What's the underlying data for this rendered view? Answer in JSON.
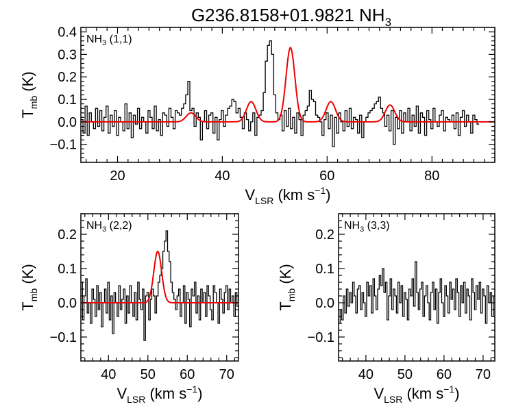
{
  "title": {
    "main": "G236.8158+01.9821 NH",
    "sub": "3"
  },
  "colors": {
    "data": "#000000",
    "fit": "#ee0000",
    "axes": "#000000",
    "background": "#ffffff"
  },
  "chart_data": [
    {
      "type": "line",
      "panel": "NH3 (1,1)",
      "label": {
        "main": "NH",
        "sub": "3",
        "rest": " (1,1)"
      },
      "xlabel": {
        "main": "V",
        "sub": "LSR",
        "rest": " (km s",
        "sup": "−1",
        "end": ")"
      },
      "ylabel": {
        "main": "T",
        "sub": "mb",
        "rest": " (K)"
      },
      "xlim": [
        13,
        92
      ],
      "ylim": [
        -0.18,
        0.42
      ],
      "xticks": [
        20,
        40,
        60,
        80
      ],
      "xtick_labels": [
        "20",
        "40",
        "60",
        "80"
      ],
      "yticks": [
        -0.1,
        0.0,
        0.1,
        0.2,
        0.3,
        0.4
      ],
      "ytick_labels": [
        "−0.1",
        "0.0",
        "0.1",
        "0.2",
        "0.3",
        "0.4"
      ],
      "x_minor_step": 2,
      "y_minor_step": 0.02,
      "fit_components": [
        {
          "center": 34.0,
          "amplitude": 0.04,
          "sigma": 0.9
        },
        {
          "center": 45.5,
          "amplitude": 0.09,
          "sigma": 0.9
        },
        {
          "center": 53.0,
          "amplitude": 0.33,
          "sigma": 0.85
        },
        {
          "center": 60.7,
          "amplitude": 0.09,
          "sigma": 0.9
        },
        {
          "center": 72.0,
          "amplitude": 0.075,
          "sigma": 0.9
        }
      ],
      "spectrum": {
        "x_start": 13.2,
        "x_step": 0.4,
        "y": [
          0.01,
          -0.05,
          0.07,
          -0.06,
          0.04,
          0.0,
          -0.03,
          0.06,
          -0.02,
          0.05,
          -0.04,
          0.02,
          0.07,
          -0.05,
          0.03,
          -0.02,
          0.05,
          -0.06,
          0.02,
          0.0,
          -0.04,
          0.08,
          -0.03,
          0.04,
          -0.07,
          0.03,
          -0.01,
          0.06,
          -0.03,
          0.02,
          0.0,
          -0.05,
          0.05,
          0.02,
          -0.03,
          0.07,
          -0.04,
          0.01,
          -0.06,
          0.04,
          0.03,
          -0.02,
          0.06,
          0.02,
          -0.03,
          0.05,
          0.04,
          0.03,
          0.06,
          0.08,
          0.12,
          0.18,
          0.05,
          0.06,
          -0.02,
          0.04,
          0.02,
          -0.08,
          0.0,
          0.05,
          -0.03,
          0.03,
          0.04,
          -0.05,
          0.02,
          -0.08,
          0.01,
          0.05,
          -0.02,
          0.03,
          0.06,
          0.07,
          0.1,
          0.09,
          0.04,
          0.06,
          0.02,
          -0.03,
          0.04,
          0.01,
          -0.04,
          0.0,
          0.04,
          -0.06,
          0.02,
          0.03,
          0.05,
          0.13,
          0.27,
          0.34,
          0.36,
          0.3,
          0.12,
          0.04,
          0.01,
          0.03,
          -0.04,
          0.05,
          -0.02,
          0.06,
          -0.03,
          0.02,
          -0.05,
          0.04,
          0.01,
          -0.06,
          0.03,
          0.05,
          0.07,
          0.14,
          0.1,
          0.09,
          0.03,
          0.02,
          0.0,
          -0.06,
          0.01,
          0.04,
          -0.03,
          0.03,
          -0.11,
          0.02,
          -0.05,
          0.04,
          0.0,
          -0.04,
          0.05,
          -0.02,
          0.06,
          -0.03,
          0.02,
          0.01,
          -0.05,
          0.03,
          -0.07,
          0.0,
          0.02,
          0.04,
          0.05,
          0.06,
          0.08,
          0.09,
          0.11,
          0.06,
          0.04,
          -0.02,
          0.03,
          -0.04,
          0.05,
          -0.1,
          0.02,
          -0.03,
          0.05,
          -0.05,
          0.04,
          0.0,
          0.06,
          -0.04,
          0.03,
          -0.02,
          0.07,
          -0.05,
          0.04,
          0.02,
          -0.06,
          0.05,
          0.01,
          -0.03,
          0.06,
          0.0,
          -0.02,
          0.03,
          0.05,
          -0.04,
          0.02,
          0.01,
          0.0,
          0.03,
          -0.03,
          0.04,
          -0.06,
          0.02,
          0.05,
          -0.02,
          0.03,
          0.0,
          -0.05,
          0.03,
          0.01,
          -0.01
        ]
      }
    },
    {
      "type": "line",
      "panel": "NH3 (2,2)",
      "label": {
        "main": "NH",
        "sub": "3",
        "rest": " (2,2)"
      },
      "xlabel": {
        "main": "V",
        "sub": "LSR",
        "rest": " (km s",
        "sup": "−1",
        "end": ")"
      },
      "ylabel": {
        "main": "T",
        "sub": "mb",
        "rest": " (K)"
      },
      "xlim": [
        33,
        73
      ],
      "ylim": [
        -0.17,
        0.26
      ],
      "xticks": [
        40,
        50,
        60,
        70
      ],
      "xtick_labels": [
        "40",
        "50",
        "60",
        "70"
      ],
      "yticks": [
        -0.1,
        0.0,
        0.1,
        0.2
      ],
      "ytick_labels": [
        "−0.1",
        "0.0",
        "0.1",
        "0.2"
      ],
      "x_minor_step": 2,
      "y_minor_step": 0.02,
      "fit_components": [
        {
          "center": 52.5,
          "amplitude": 0.15,
          "sigma": 1.0
        }
      ],
      "spectrum": {
        "x_start": 33.2,
        "x_step": 0.4,
        "y": [
          0.06,
          -0.05,
          0.02,
          0.07,
          -0.03,
          0.0,
          -0.06,
          0.04,
          0.01,
          -0.04,
          0.05,
          -0.02,
          0.03,
          -0.07,
          0.0,
          0.04,
          -0.03,
          0.06,
          -0.05,
          0.02,
          -0.09,
          0.03,
          0.0,
          -0.04,
          0.05,
          -0.02,
          0.01,
          0.04,
          -0.06,
          0.02,
          -0.03,
          0.05,
          0.0,
          -0.04,
          0.03,
          -0.05,
          0.06,
          0.01,
          -0.02,
          0.04,
          -0.11,
          0.02,
          0.03,
          -0.05,
          0.01,
          0.04,
          0.02,
          -0.03,
          0.02,
          0.06,
          0.08,
          0.1,
          0.15,
          0.18,
          0.21,
          0.15,
          0.12,
          0.06,
          0.03,
          0.01,
          -0.02,
          0.02,
          0.04,
          -0.04,
          0.0,
          0.05,
          -0.06,
          0.03,
          0.01,
          -0.07,
          0.04,
          0.02,
          0.06,
          -0.03,
          0.02,
          -0.05,
          0.04,
          0.0,
          0.03,
          -0.04,
          0.05,
          0.02,
          -0.02,
          -0.05,
          0.05,
          0.03,
          0.0,
          -0.06,
          0.04,
          0.01,
          -0.03,
          0.03,
          0.05,
          -0.02,
          0.04,
          0.0,
          0.02,
          -0.04,
          0.03,
          -0.01
        ]
      }
    },
    {
      "type": "line",
      "panel": "NH3 (3,3)",
      "label": {
        "main": "NH",
        "sub": "3",
        "rest": " (3,3)"
      },
      "xlabel": {
        "main": "V",
        "sub": "LSR",
        "rest": " (km s",
        "sup": "−1",
        "end": ")"
      },
      "ylabel": {
        "main": "T",
        "sub": "mb",
        "rest": " (K)"
      },
      "xlim": [
        33,
        73
      ],
      "ylim": [
        -0.17,
        0.26
      ],
      "xticks": [
        40,
        50,
        60,
        70
      ],
      "xtick_labels": [
        "40",
        "50",
        "60",
        "70"
      ],
      "yticks": [
        -0.1,
        0.0,
        0.1,
        0.2
      ],
      "ytick_labels": [
        "−0.1",
        "0.0",
        "0.1",
        "0.2"
      ],
      "x_minor_step": 2,
      "y_minor_step": 0.02,
      "fit_components": [],
      "spectrum": {
        "x_start": 33.2,
        "x_step": 0.4,
        "y": [
          -0.06,
          -0.02,
          -0.05,
          0.02,
          -0.03,
          0.04,
          -0.01,
          0.03,
          0.0,
          0.06,
          0.02,
          -0.03,
          0.04,
          0.05,
          -0.02,
          0.03,
          0.0,
          -0.04,
          0.06,
          0.02,
          0.05,
          -0.03,
          0.07,
          0.02,
          -0.02,
          0.04,
          0.08,
          0.05,
          0.1,
          0.03,
          0.06,
          -0.05,
          0.02,
          0.07,
          -0.02,
          0.04,
          0.02,
          -0.03,
          0.06,
          0.0,
          0.05,
          -0.04,
          0.03,
          0.01,
          -0.05,
          0.04,
          0.02,
          0.07,
          -0.01,
          0.12,
          0.03,
          -0.02,
          0.04,
          0.06,
          -0.04,
          0.02,
          0.05,
          0.0,
          -0.05,
          0.03,
          0.06,
          -0.02,
          0.04,
          -0.06,
          0.03,
          0.07,
          0.0,
          -0.04,
          0.05,
          0.02,
          -0.03,
          0.06,
          0.01,
          0.04,
          -0.02,
          0.07,
          0.03,
          -0.04,
          0.05,
          0.0,
          0.06,
          -0.03,
          0.04,
          0.02,
          -0.05,
          0.07,
          0.03,
          -0.02,
          0.05,
          0.01,
          0.06,
          -0.03,
          0.04,
          0.02,
          -0.06,
          0.05,
          0.0,
          0.03,
          -0.04,
          0.02
        ]
      }
    }
  ]
}
